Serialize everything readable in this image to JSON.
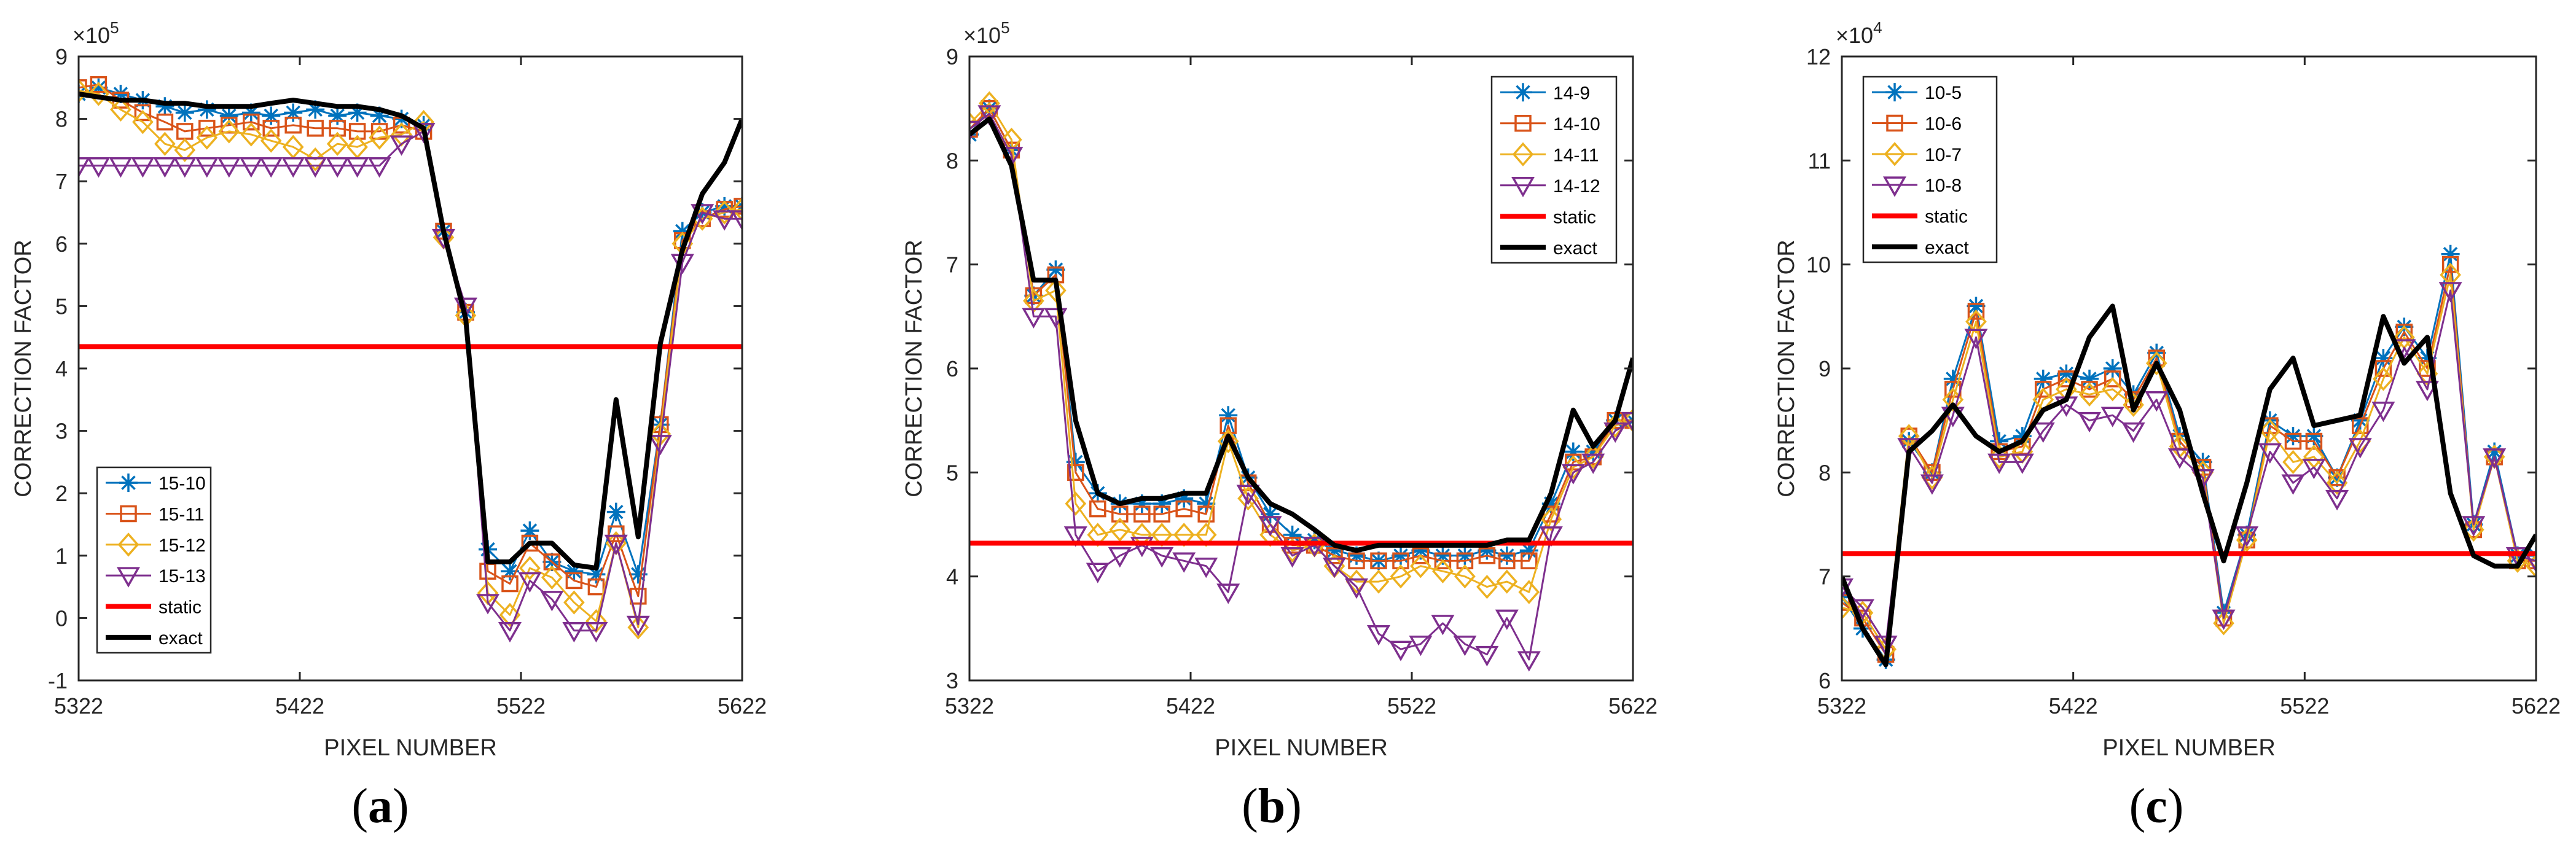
{
  "captions": [
    "a",
    "b",
    "c"
  ],
  "chart_data": [
    {
      "type": "line",
      "panel": "a",
      "xlabel": "PIXEL NUMBER",
      "ylabel": "CORRECTION FACTOR",
      "y_multiplier": "×10",
      "y_exponent": "5",
      "xlim": [
        5322,
        5622
      ],
      "ylim": [
        -1,
        9
      ],
      "x_ticks": [
        5322,
        5422,
        5522,
        5622
      ],
      "y_ticks": [
        -1,
        0,
        1,
        2,
        3,
        4,
        5,
        6,
        7,
        8,
        9
      ],
      "legend_position": "bottom-left",
      "x": [
        5322,
        5331,
        5341,
        5351,
        5361,
        5370,
        5380,
        5390,
        5400,
        5409,
        5419,
        5429,
        5439,
        5448,
        5458,
        5468,
        5478,
        5487,
        5497,
        5507,
        5517,
        5526,
        5536,
        5546,
        5556,
        5565,
        5575,
        5585,
        5595,
        5604,
        5614,
        5622
      ],
      "series": [
        {
          "name": "15-10",
          "color": "#0072BD",
          "marker": "asterisk",
          "values": [
            8.4,
            8.5,
            8.4,
            8.3,
            8.2,
            8.1,
            8.15,
            8.05,
            8.1,
            8.05,
            8.1,
            8.15,
            8.05,
            8.1,
            8.05,
            8.0,
            7.9,
            6.2,
            4.9,
            1.1,
            0.75,
            1.4,
            0.9,
            0.75,
            0.7,
            1.7,
            0.7,
            3.1,
            6.2,
            6.5,
            6.6,
            6.6
          ]
        },
        {
          "name": "15-11",
          "color": "#D95319",
          "marker": "square",
          "values": [
            8.5,
            8.55,
            8.3,
            8.1,
            7.95,
            7.8,
            7.85,
            7.9,
            7.95,
            7.85,
            7.9,
            7.85,
            7.85,
            7.8,
            7.8,
            7.9,
            7.8,
            6.2,
            4.9,
            0.75,
            0.55,
            1.2,
            0.9,
            0.6,
            0.5,
            1.35,
            0.35,
            3.1,
            6.05,
            6.4,
            6.55,
            6.6
          ]
        },
        {
          "name": "15-12",
          "color": "#EDB120",
          "marker": "diamond",
          "values": [
            8.45,
            8.4,
            8.15,
            7.95,
            7.6,
            7.5,
            7.7,
            7.8,
            7.75,
            7.65,
            7.55,
            7.35,
            7.6,
            7.55,
            7.7,
            7.75,
            7.95,
            6.1,
            4.85,
            0.4,
            0.05,
            0.8,
            0.65,
            0.25,
            -0.05,
            1.2,
            -0.15,
            2.95,
            6.0,
            6.4,
            6.5,
            6.55
          ]
        },
        {
          "name": "15-13",
          "color": "#7E2F8E",
          "marker": "triangle-down",
          "values": [
            7.25,
            7.25,
            7.25,
            7.25,
            7.25,
            7.25,
            7.25,
            7.25,
            7.25,
            7.25,
            7.25,
            7.25,
            7.25,
            7.25,
            7.25,
            7.6,
            7.8,
            6.1,
            5.0,
            0.25,
            -0.2,
            0.6,
            0.3,
            -0.2,
            -0.2,
            1.2,
            -0.1,
            2.8,
            5.7,
            6.5,
            6.4,
            6.4
          ]
        },
        {
          "name": "static",
          "color": "#FF0000",
          "marker": "none",
          "width": 8,
          "values": [
            4.35,
            4.35,
            4.35,
            4.35,
            4.35,
            4.35,
            4.35,
            4.35,
            4.35,
            4.35,
            4.35,
            4.35,
            4.35,
            4.35,
            4.35,
            4.35,
            4.35,
            4.35,
            4.35,
            4.35,
            4.35,
            4.35,
            4.35,
            4.35,
            4.35,
            4.35,
            4.35,
            4.35,
            4.35,
            4.35,
            4.35,
            4.35
          ]
        },
        {
          "name": "exact",
          "color": "#000000",
          "marker": "none",
          "width": 8,
          "values": [
            8.4,
            8.35,
            8.3,
            8.3,
            8.25,
            8.25,
            8.2,
            8.2,
            8.2,
            8.25,
            8.3,
            8.25,
            8.2,
            8.2,
            8.15,
            8.05,
            7.85,
            6.2,
            4.8,
            0.9,
            0.9,
            1.2,
            1.2,
            0.85,
            0.8,
            3.5,
            1.3,
            4.4,
            5.9,
            6.8,
            7.3,
            8.0
          ]
        }
      ]
    },
    {
      "type": "line",
      "panel": "b",
      "xlabel": "PIXEL NUMBER",
      "ylabel": "CORRECTION FACTOR",
      "y_multiplier": "×10",
      "y_exponent": "5",
      "xlim": [
        5322,
        5622
      ],
      "ylim": [
        3,
        9
      ],
      "x_ticks": [
        5322,
        5422,
        5522,
        5622
      ],
      "y_ticks": [
        3,
        4,
        5,
        6,
        7,
        8,
        9
      ],
      "legend_position": "top-right",
      "x": [
        5322,
        5331,
        5341,
        5351,
        5361,
        5370,
        5380,
        5390,
        5400,
        5409,
        5419,
        5429,
        5439,
        5448,
        5458,
        5468,
        5478,
        5487,
        5497,
        5507,
        5517,
        5526,
        5536,
        5546,
        5556,
        5565,
        5575,
        5585,
        5595,
        5604,
        5614,
        5622
      ],
      "series": [
        {
          "name": "14-9",
          "color": "#0072BD",
          "marker": "asterisk",
          "values": [
            8.25,
            8.5,
            8.1,
            6.7,
            6.95,
            5.1,
            4.8,
            4.7,
            4.7,
            4.7,
            4.75,
            4.7,
            5.55,
            4.95,
            4.6,
            4.4,
            4.35,
            4.25,
            4.2,
            4.15,
            4.2,
            4.25,
            4.2,
            4.2,
            4.25,
            4.2,
            4.25,
            4.7,
            5.2,
            5.2,
            5.5,
            5.5
          ]
        },
        {
          "name": "14-10",
          "color": "#D95319",
          "marker": "square",
          "values": [
            8.3,
            8.5,
            8.1,
            6.7,
            6.9,
            5.0,
            4.65,
            4.6,
            4.6,
            4.6,
            4.65,
            4.6,
            5.45,
            4.9,
            4.5,
            4.3,
            4.3,
            4.2,
            4.15,
            4.15,
            4.15,
            4.2,
            4.15,
            4.15,
            4.2,
            4.15,
            4.15,
            4.6,
            5.1,
            5.15,
            5.5,
            5.5
          ]
        },
        {
          "name": "14-11",
          "color": "#EDB120",
          "marker": "diamond",
          "values": [
            8.35,
            8.55,
            8.2,
            6.65,
            6.75,
            4.7,
            4.4,
            4.45,
            4.4,
            4.4,
            4.4,
            4.4,
            5.3,
            4.75,
            4.4,
            4.25,
            4.3,
            4.1,
            3.95,
            3.95,
            4.0,
            4.1,
            4.05,
            4.0,
            3.9,
            3.95,
            3.85,
            4.55,
            5.05,
            5.15,
            5.45,
            5.5
          ]
        },
        {
          "name": "14-12",
          "color": "#7E2F8E",
          "marker": "triangle-down",
          "values": [
            8.3,
            8.45,
            8.05,
            6.5,
            6.5,
            4.4,
            4.05,
            4.2,
            4.3,
            4.2,
            4.15,
            4.1,
            3.85,
            4.8,
            4.5,
            4.2,
            4.3,
            4.1,
            3.9,
            3.45,
            3.3,
            3.35,
            3.55,
            3.35,
            3.25,
            3.6,
            3.2,
            4.4,
            5.0,
            5.1,
            5.4,
            5.5
          ]
        },
        {
          "name": "static",
          "color": "#FF0000",
          "marker": "none",
          "width": 8,
          "values": [
            4.32,
            4.32,
            4.32,
            4.32,
            4.32,
            4.32,
            4.32,
            4.32,
            4.32,
            4.32,
            4.32,
            4.32,
            4.32,
            4.32,
            4.32,
            4.32,
            4.32,
            4.32,
            4.32,
            4.32,
            4.32,
            4.32,
            4.32,
            4.32,
            4.32,
            4.32,
            4.32,
            4.32,
            4.32,
            4.32,
            4.32,
            4.32
          ]
        },
        {
          "name": "exact",
          "color": "#000000",
          "marker": "none",
          "width": 8,
          "values": [
            8.25,
            8.4,
            7.95,
            6.85,
            6.85,
            5.5,
            4.8,
            4.7,
            4.75,
            4.75,
            4.8,
            4.8,
            5.35,
            4.95,
            4.7,
            4.6,
            4.45,
            4.3,
            4.25,
            4.3,
            4.3,
            4.3,
            4.3,
            4.3,
            4.3,
            4.35,
            4.35,
            4.8,
            5.6,
            5.25,
            5.5,
            6.1
          ]
        }
      ]
    },
    {
      "type": "line",
      "panel": "c",
      "xlabel": "PIXEL NUMBER",
      "ylabel": "CORRECTION FACTOR",
      "y_multiplier": "×10",
      "y_exponent": "4",
      "xlim": [
        5322,
        5622
      ],
      "ylim": [
        6,
        12
      ],
      "x_ticks": [
        5322,
        5422,
        5522,
        5622
      ],
      "y_ticks": [
        6,
        7,
        8,
        9,
        10,
        11,
        12
      ],
      "legend_position": "top-left",
      "x": [
        5322,
        5331,
        5341,
        5351,
        5361,
        5370,
        5380,
        5390,
        5400,
        5409,
        5419,
        5429,
        5439,
        5448,
        5458,
        5468,
        5478,
        5487,
        5497,
        5507,
        5517,
        5526,
        5536,
        5546,
        5556,
        5565,
        5575,
        5585,
        5595,
        5604,
        5614,
        5622
      ],
      "series": [
        {
          "name": "10-5",
          "color": "#0072BD",
          "marker": "asterisk",
          "values": [
            6.8,
            6.5,
            6.2,
            8.3,
            8.0,
            8.9,
            9.6,
            8.3,
            8.35,
            8.9,
            8.95,
            8.9,
            9.0,
            8.75,
            9.15,
            8.35,
            8.1,
            6.65,
            7.4,
            8.5,
            8.35,
            8.35,
            7.95,
            8.5,
            9.1,
            9.4,
            9.1,
            10.1,
            7.5,
            8.2,
            7.2,
            7.2
          ]
        },
        {
          "name": "10-6",
          "color": "#D95319",
          "marker": "square",
          "values": [
            6.75,
            6.6,
            6.25,
            8.35,
            8.0,
            8.8,
            9.55,
            8.2,
            8.25,
            8.8,
            8.9,
            8.8,
            8.9,
            8.7,
            9.1,
            8.3,
            8.05,
            6.6,
            7.35,
            8.45,
            8.3,
            8.3,
            7.95,
            8.45,
            9.0,
            9.35,
            9.0,
            10.0,
            7.45,
            8.15,
            7.15,
            7.15
          ]
        },
        {
          "name": "10-7",
          "color": "#EDB120",
          "marker": "diamond",
          "values": [
            6.7,
            6.65,
            6.3,
            8.35,
            7.95,
            8.7,
            9.45,
            8.15,
            8.2,
            8.7,
            8.8,
            8.75,
            8.8,
            8.65,
            9.05,
            8.25,
            8.0,
            6.55,
            7.35,
            8.4,
            8.1,
            8.15,
            7.9,
            8.3,
            8.9,
            9.3,
            8.95,
            9.9,
            7.45,
            8.15,
            7.15,
            7.1
          ]
        },
        {
          "name": "10-8",
          "color": "#7E2F8E",
          "marker": "triangle-down",
          "values": [
            6.9,
            6.7,
            6.35,
            8.25,
            7.9,
            8.55,
            9.3,
            8.1,
            8.1,
            8.4,
            8.65,
            8.5,
            8.55,
            8.4,
            8.7,
            8.15,
            7.95,
            6.6,
            7.4,
            8.2,
            7.9,
            8.05,
            7.75,
            8.25,
            8.6,
            9.2,
            8.8,
            9.75,
            7.5,
            8.15,
            7.2,
            7.15
          ]
        },
        {
          "name": "static",
          "color": "#FF0000",
          "marker": "none",
          "width": 8,
          "values": [
            7.22,
            7.22,
            7.22,
            7.22,
            7.22,
            7.22,
            7.22,
            7.22,
            7.22,
            7.22,
            7.22,
            7.22,
            7.22,
            7.22,
            7.22,
            7.22,
            7.22,
            7.22,
            7.22,
            7.22,
            7.22,
            7.22,
            7.22,
            7.22,
            7.22,
            7.22,
            7.22,
            7.22,
            7.22,
            7.22,
            7.22,
            7.22
          ]
        },
        {
          "name": "exact",
          "color": "#000000",
          "marker": "none",
          "width": 8,
          "values": [
            7.0,
            6.5,
            6.15,
            8.2,
            8.4,
            8.65,
            8.35,
            8.2,
            8.3,
            8.6,
            8.7,
            9.3,
            9.6,
            8.6,
            9.05,
            8.6,
            7.8,
            7.15,
            7.9,
            8.8,
            9.1,
            8.45,
            8.5,
            8.55,
            9.5,
            9.05,
            9.3,
            7.8,
            7.2,
            7.1,
            7.1,
            7.4
          ]
        }
      ]
    }
  ]
}
